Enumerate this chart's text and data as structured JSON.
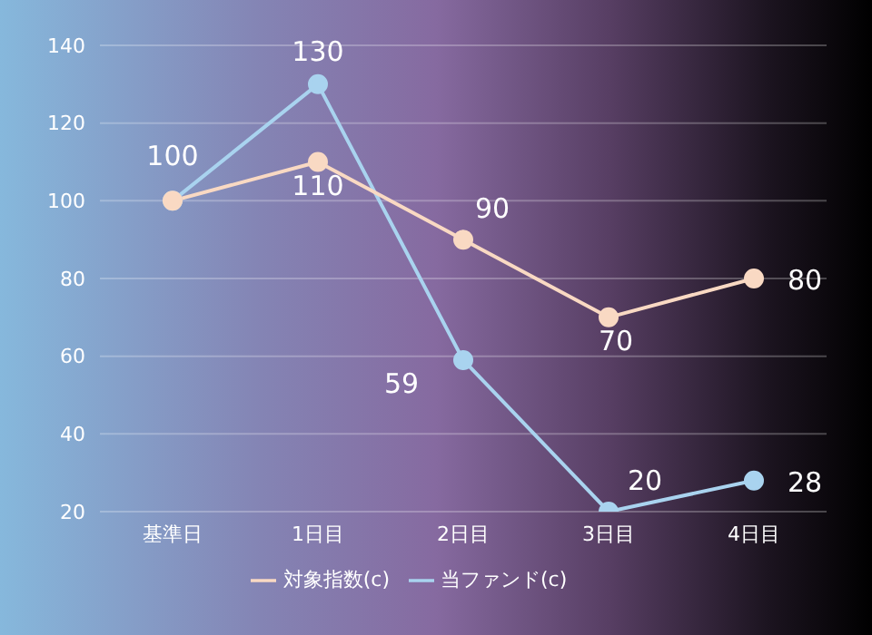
{
  "chart_data": {
    "type": "line",
    "categories": [
      "基準日",
      "1日目",
      "2日目",
      "3日目",
      "4日目"
    ],
    "series": [
      {
        "name": "当ファンド(c)",
        "color": "#a9d3ef",
        "values": [
          100,
          130,
          59,
          20,
          28
        ],
        "value_labels": [
          "100",
          "130",
          "59",
          "20",
          "28"
        ]
      },
      {
        "name": "対象指数(c)",
        "color": "#f9d9c3",
        "values": [
          100,
          110,
          90,
          70,
          80
        ],
        "value_labels": [
          null,
          "110",
          "90",
          "70",
          "80"
        ]
      }
    ],
    "ylim": [
      20,
      140
    ],
    "yticks": [
      20,
      40,
      60,
      80,
      100,
      120,
      140
    ],
    "grid": "y",
    "legend": "bottom",
    "marker": "circle",
    "line_style": "solid"
  }
}
